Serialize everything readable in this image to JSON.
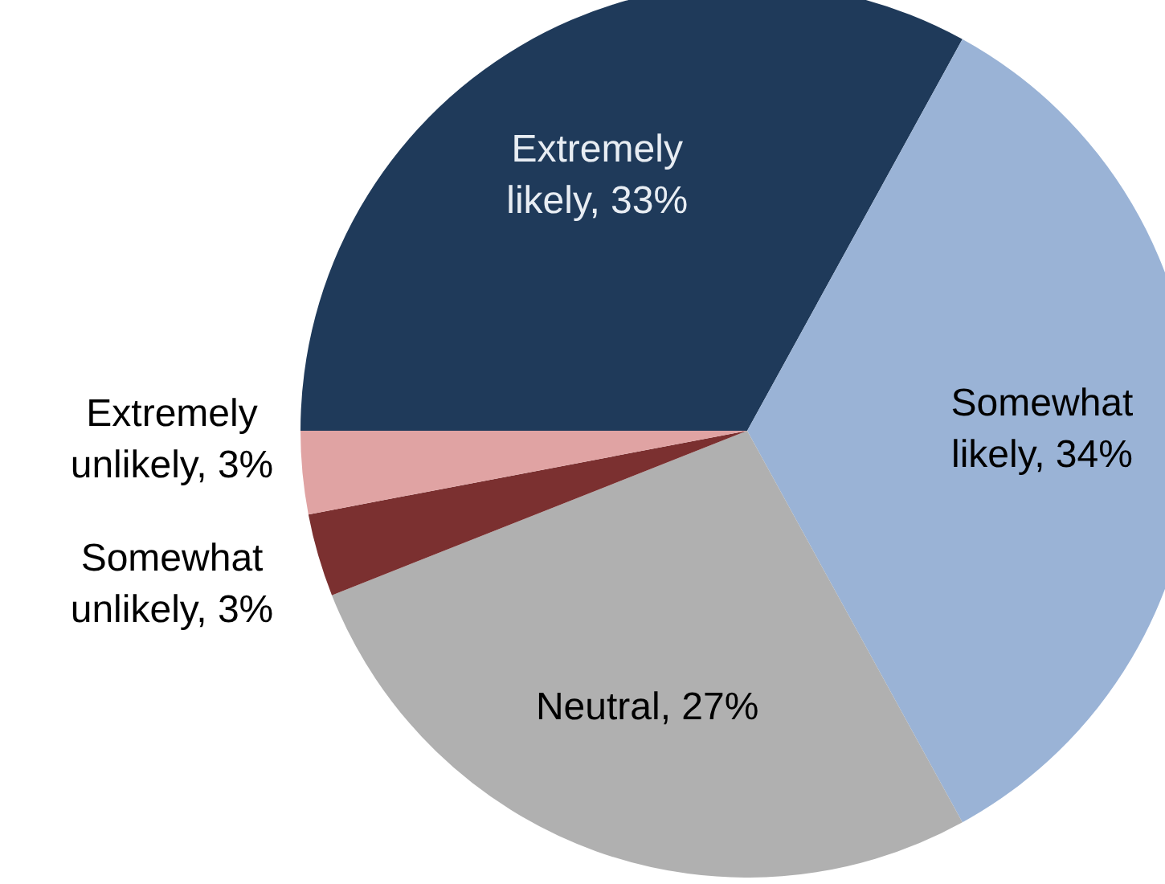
{
  "chart_data": {
    "type": "pie",
    "categories": [
      "Extremely likely",
      "Somewhat likely",
      "Neutral",
      "Somewhat unlikely",
      "Extremely unlikely"
    ],
    "values": [
      33,
      34,
      27,
      3,
      3
    ],
    "value_labels": [
      "33%",
      "34%",
      "27%",
      "3%",
      "3%"
    ],
    "colors": [
      "#1f3a5a",
      "#9ab3d6",
      "#b0b0b0",
      "#7b3030",
      "#e0a3a3"
    ],
    "legend": false
  }
}
